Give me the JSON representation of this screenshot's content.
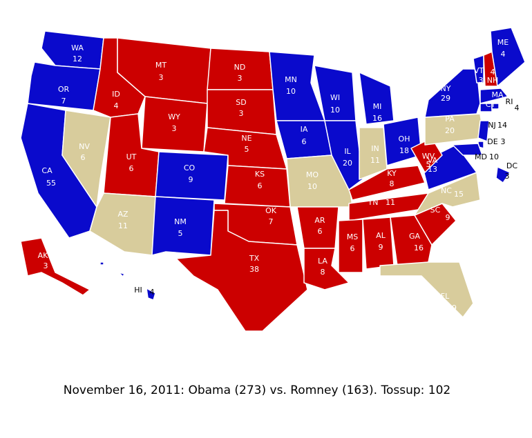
{
  "caption": "November 16, 2011: Obama (273) vs. Romney (163). Tossup: 102",
  "states": [
    {
      "abbr": "WA",
      "votes": 12,
      "color": "#0a0acc"
    },
    {
      "abbr": "OR",
      "votes": 7,
      "color": "#0a0acc"
    },
    {
      "abbr": "CA",
      "votes": 55,
      "color": "#0a0acc"
    },
    {
      "abbr": "NV",
      "votes": 6,
      "color": "#d8cc9c"
    },
    {
      "abbr": "ID",
      "votes": 4,
      "color": "#cc0000"
    },
    {
      "abbr": "MT",
      "votes": 3,
      "color": "#cc0000"
    },
    {
      "abbr": "WY",
      "votes": 3,
      "color": "#cc0000"
    },
    {
      "abbr": "UT",
      "votes": 6,
      "color": "#cc0000"
    },
    {
      "abbr": "AZ",
      "votes": 11,
      "color": "#d8cc9c"
    },
    {
      "abbr": "CO",
      "votes": 9,
      "color": "#0a0acc"
    },
    {
      "abbr": "NM",
      "votes": 5,
      "color": "#0a0acc"
    },
    {
      "abbr": "ND",
      "votes": 3,
      "color": "#cc0000"
    },
    {
      "abbr": "SD",
      "votes": 3,
      "color": "#cc0000"
    },
    {
      "abbr": "NE",
      "votes": 5,
      "color": "#cc0000"
    },
    {
      "abbr": "KS",
      "votes": 6,
      "color": "#cc0000"
    },
    {
      "abbr": "OK",
      "votes": 7,
      "color": "#cc0000"
    },
    {
      "abbr": "TX",
      "votes": 38,
      "color": "#cc0000"
    },
    {
      "abbr": "MN",
      "votes": 10,
      "color": "#0a0acc"
    },
    {
      "abbr": "IA",
      "votes": 6,
      "color": "#0a0acc"
    },
    {
      "abbr": "MO",
      "votes": 10,
      "color": "#d8cc9c"
    },
    {
      "abbr": "AR",
      "votes": 6,
      "color": "#cc0000"
    },
    {
      "abbr": "LA",
      "votes": 8,
      "color": "#cc0000"
    },
    {
      "abbr": "WI",
      "votes": 10,
      "color": "#0a0acc"
    },
    {
      "abbr": "IL",
      "votes": 20,
      "color": "#0a0acc"
    },
    {
      "abbr": "MI",
      "votes": 16,
      "color": "#0a0acc"
    },
    {
      "abbr": "IN",
      "votes": 11,
      "color": "#d8cc9c"
    },
    {
      "abbr": "OH",
      "votes": 18,
      "color": "#0a0acc"
    },
    {
      "abbr": "KY",
      "votes": 8,
      "color": "#cc0000"
    },
    {
      "abbr": "TN",
      "votes": 11,
      "color": "#cc0000"
    },
    {
      "abbr": "MS",
      "votes": 6,
      "color": "#cc0000"
    },
    {
      "abbr": "AL",
      "votes": 9,
      "color": "#cc0000"
    },
    {
      "abbr": "GA",
      "votes": 16,
      "color": "#cc0000"
    },
    {
      "abbr": "SC",
      "votes": 9,
      "color": "#cc0000"
    },
    {
      "abbr": "NC",
      "votes": 15,
      "color": "#d8cc9c"
    },
    {
      "abbr": "FL",
      "votes": 29,
      "color": "#d8cc9c"
    },
    {
      "abbr": "VA",
      "votes": 13,
      "color": "#0a0acc"
    },
    {
      "abbr": "WV",
      "votes": 5,
      "color": "#cc0000"
    },
    {
      "abbr": "PA",
      "votes": 20,
      "color": "#d8cc9c"
    },
    {
      "abbr": "NY",
      "votes": 29,
      "color": "#0a0acc"
    },
    {
      "abbr": "VT",
      "votes": 3,
      "color": "#0a0acc"
    },
    {
      "abbr": "NH",
      "votes": 4,
      "color": "#cc0000"
    },
    {
      "abbr": "ME",
      "votes": 4,
      "color": "#0a0acc"
    },
    {
      "abbr": "MA",
      "votes": 11,
      "color": "#0a0acc"
    },
    {
      "abbr": "CT",
      "votes": 7,
      "color": "#0a0acc"
    },
    {
      "abbr": "RI",
      "votes": 4,
      "color": "#0a0acc"
    },
    {
      "abbr": "NJ",
      "votes": 14,
      "color": "#0a0acc"
    },
    {
      "abbr": "DE",
      "votes": 3,
      "color": "#0a0acc"
    },
    {
      "abbr": "MD",
      "votes": 10,
      "color": "#0a0acc"
    },
    {
      "abbr": "DC",
      "votes": 3,
      "color": "#0a0acc"
    },
    {
      "abbr": "AK",
      "votes": 3,
      "color": "#cc0000"
    },
    {
      "abbr": "HI",
      "votes": 4,
      "color": "#0a0acc"
    }
  ]
}
